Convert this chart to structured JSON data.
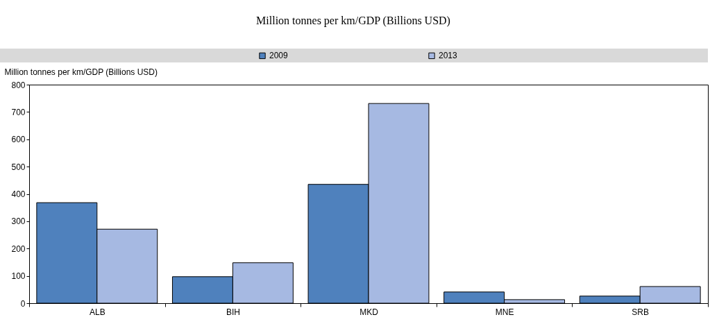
{
  "chart_data": {
    "type": "bar",
    "title": "Million tonnes per km/GDP (Billions USD)",
    "ylabel": "Million tonnes per km/GDP (Billions USD)",
    "categories": [
      "ALB",
      "BIH",
      "MKD",
      "MNE",
      "SRB"
    ],
    "series": [
      {
        "name": "2009",
        "color": "#4f81bd",
        "values": [
          368,
          97,
          435,
          41,
          26
        ]
      },
      {
        "name": "2013",
        "color": "#a6b9e2",
        "values": [
          271,
          148,
          731,
          13,
          61
        ]
      }
    ],
    "ylim": [
      0,
      800
    ],
    "yticks": [
      0,
      100,
      200,
      300,
      400,
      500,
      600,
      700,
      800
    ],
    "grid": false,
    "legend": "top"
  }
}
